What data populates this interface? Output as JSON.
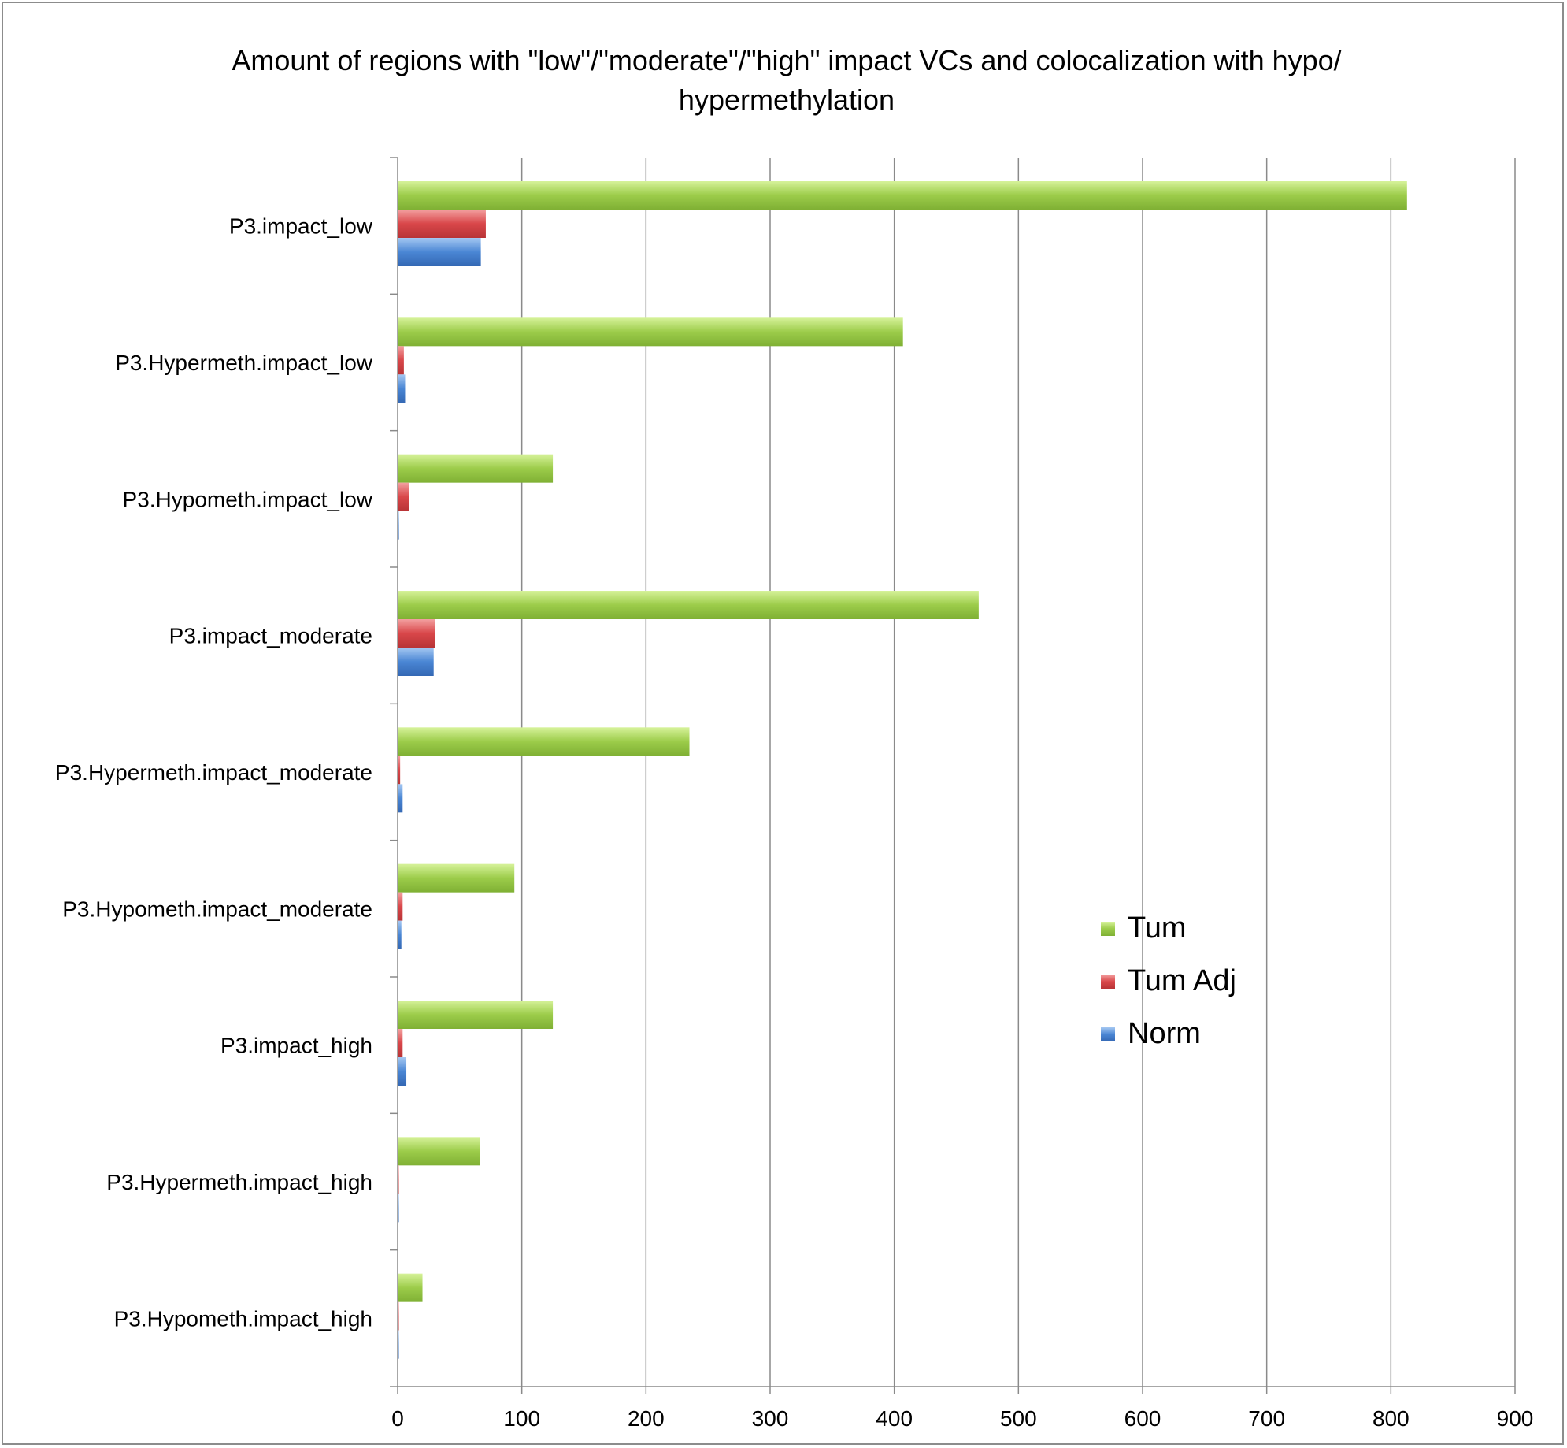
{
  "chart_data": {
    "type": "bar",
    "orientation": "horizontal",
    "title": "Amount of regions with \"low\"/\"moderate\"/\"high\" impact VCs and colocalization with hypo/ hypermethylation",
    "categories": [
      "P3.impact_low",
      "P3.Hypermeth.impact_low",
      "P3.Hypometh.impact_low",
      "P3.impact_moderate",
      "P3.Hypermeth.impact_moderate",
      "P3.Hypometh.impact_moderate",
      "P3.impact_high",
      "P3.Hypermeth.impact_high",
      "P3.Hypometh.impact_high"
    ],
    "series": [
      {
        "name": "Tum",
        "color": "#9ccc4a",
        "values": [
          813,
          407,
          125,
          468,
          235,
          94,
          125,
          66,
          20
        ]
      },
      {
        "name": "Tum Adj",
        "color": "#d9474a",
        "values": [
          71,
          5,
          9,
          30,
          2,
          4,
          4,
          0,
          0
        ]
      },
      {
        "name": "Norm",
        "color": "#4a86d4",
        "values": [
          67,
          6,
          1,
          29,
          4,
          3,
          7,
          0,
          0
        ]
      }
    ],
    "xlim": [
      0,
      900
    ],
    "xticks": [
      0,
      100,
      200,
      300,
      400,
      500,
      600,
      700,
      800,
      900
    ],
    "grid": true,
    "legend_position": "right"
  }
}
